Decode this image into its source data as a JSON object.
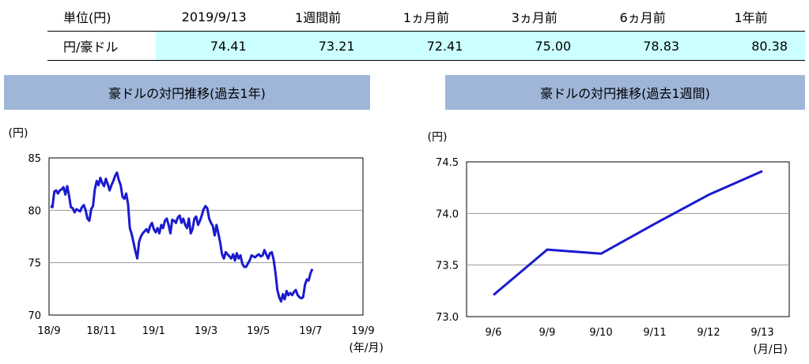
{
  "table": {
    "headers": [
      "単位(円)",
      "2019/9/13",
      "1週間前",
      "1ヵ月前",
      "3ヵ月前",
      "6ヵ月前",
      "1年前"
    ],
    "row_label": "円/豪ドル",
    "values": [
      "74.41",
      "73.21",
      "72.41",
      "75.00",
      "78.83",
      "80.38"
    ]
  },
  "chart_data": [
    {
      "type": "line",
      "title": "豪ドルの対円推移(過去1年)",
      "ylabel": "(円)",
      "xlabel": "(年/月)",
      "ylim": [
        70,
        85
      ],
      "yticks": [
        "85",
        "80",
        "75",
        "70"
      ],
      "xticks": [
        "18/9",
        "18/11",
        "19/1",
        "19/3",
        "19/5",
        "19/7",
        "19/9"
      ],
      "color": "#1a1ad0",
      "series": [
        {
          "values": [
            80.4,
            80.3,
            81.8,
            81.9,
            81.6,
            81.9,
            82.0,
            82.2,
            81.5,
            82.3,
            81.4,
            80.3,
            80.2,
            79.8,
            80.1,
            80.0,
            79.9,
            80.3,
            80.5,
            80.0,
            79.2,
            79.0,
            80.1,
            80.4,
            82.0,
            82.8,
            82.4,
            83.1,
            82.6,
            82.3,
            83.0,
            82.5,
            81.9,
            82.4,
            82.8,
            83.3,
            83.6,
            82.9,
            82.4,
            81.3,
            81.1,
            81.6,
            80.6,
            78.3,
            77.7,
            76.9,
            76.1,
            75.4,
            77.0,
            77.5,
            77.8,
            78.0,
            78.2,
            77.9,
            78.5,
            78.8,
            78.2,
            77.9,
            78.3,
            77.8,
            78.6,
            78.3,
            79.0,
            79.2,
            78.6,
            77.8,
            79.1,
            79.0,
            78.8,
            79.3,
            79.5,
            78.8,
            79.2,
            78.6,
            78.3,
            79.2,
            77.8,
            78.2,
            79.2,
            79.4,
            78.6,
            79.0,
            79.5,
            80.1,
            80.4,
            80.2,
            79.2,
            78.8,
            78.5,
            77.6,
            78.6,
            77.8,
            76.9,
            75.8,
            75.4,
            76.0,
            75.8,
            75.6,
            75.4,
            75.8,
            75.2,
            75.9,
            75.4,
            75.7,
            74.9,
            74.6,
            74.6,
            74.9,
            75.2,
            75.7,
            75.6,
            75.5,
            75.7,
            75.8,
            75.6,
            75.7,
            76.2,
            75.8,
            75.4,
            75.9,
            76.0,
            75.3,
            74.0,
            72.4,
            71.7,
            71.3,
            72.0,
            71.5,
            72.3,
            71.9,
            72.1,
            71.9,
            72.2,
            72.4,
            71.9,
            71.7,
            71.6,
            71.7,
            72.9,
            73.4,
            73.3,
            74.0,
            74.4
          ]
        }
      ]
    },
    {
      "type": "line",
      "title": "豪ドルの対円推移(過去1週間)",
      "ylabel": "(円)",
      "xlabel": "(月/日)",
      "ylim": [
        73.0,
        74.5
      ],
      "yticks": [
        "74.5",
        "74.0",
        "73.5",
        "73.0"
      ],
      "categories": [
        "9/6",
        "9/9",
        "9/10",
        "9/11",
        "9/12",
        "9/13"
      ],
      "color": "#1a1ad0",
      "series": [
        {
          "values": [
            73.21,
            73.65,
            73.61,
            73.9,
            74.18,
            74.41
          ]
        }
      ]
    }
  ]
}
